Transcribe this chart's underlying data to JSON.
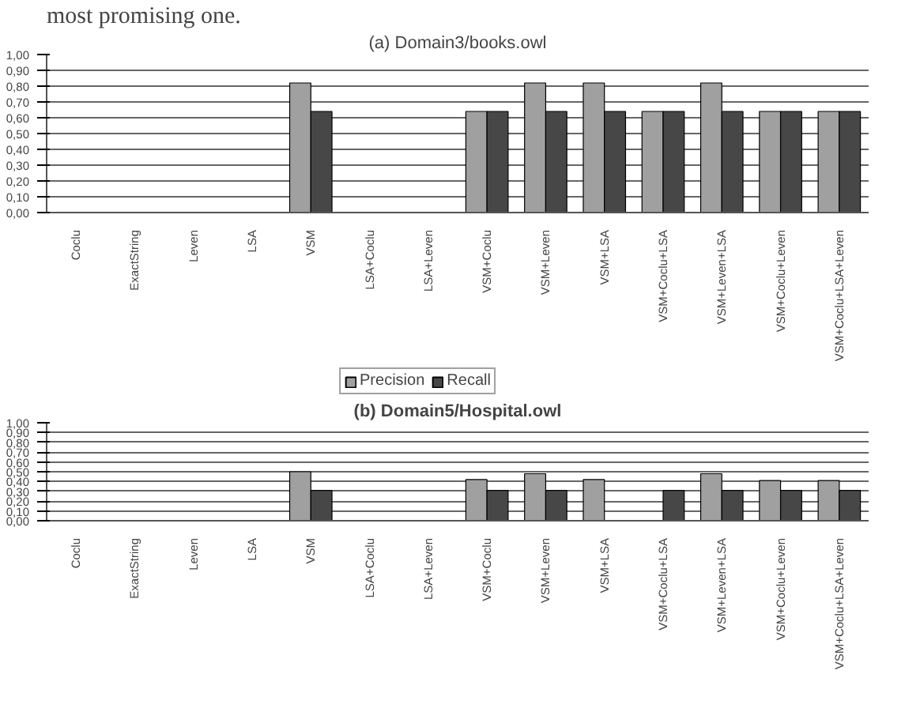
{
  "chart_data": [
    {
      "type": "bar",
      "title": "(a) Domain3/books.owl",
      "annotations": [
        "most promising one."
      ],
      "categories": [
        "Coclu",
        "ExactString",
        "Leven",
        "LSA",
        "VSM",
        "LSA+Coclu",
        "LSA+Leven",
        "VSM+Coclu",
        "VSM+Leven",
        "VSM+LSA",
        "VSM+Coclu+LSA",
        "VSM+Leven+LSA",
        "VSM+Coclu+Leven",
        "VSM+Coclu+LSA+Leven"
      ],
      "series": [
        {
          "name": "Precision",
          "color": "#a0a0a0",
          "values": [
            null,
            null,
            null,
            null,
            0.82,
            null,
            null,
            0.64,
            0.82,
            0.82,
            0.64,
            0.82,
            0.64,
            0.64
          ]
        },
        {
          "name": "Recall",
          "color": "#474747",
          "values": [
            null,
            null,
            null,
            null,
            0.64,
            null,
            null,
            0.64,
            0.64,
            0.64,
            0.64,
            0.64,
            0.64,
            0.64
          ]
        }
      ],
      "ylim": [
        0,
        1
      ],
      "yticks": [
        {
          "value": 0,
          "label": "0,00"
        },
        {
          "value": 0.1,
          "label": "0,10"
        },
        {
          "value": 0.2,
          "label": "0,20"
        },
        {
          "value": 0.3,
          "label": "0,30"
        },
        {
          "value": 0.4,
          "label": "0,40"
        },
        {
          "value": 0.5,
          "label": "0,50"
        },
        {
          "value": 0.6,
          "label": "0,60"
        },
        {
          "value": 0.7,
          "label": "0,70"
        },
        {
          "value": 0.8,
          "label": "0,80"
        },
        {
          "value": 0.9,
          "label": "0,90"
        },
        {
          "value": 1,
          "label": "1,00"
        }
      ],
      "grid": "y",
      "legend": "bottom"
    },
    {
      "type": "bar",
      "title": "(b) Domain5/Hospital.owl",
      "categories": [
        "Coclu",
        "ExactString",
        "Leven",
        "LSA",
        "VSM",
        "LSA+Coclu",
        "LSA+Leven",
        "VSM+Coclu",
        "VSM+Leven",
        "VSM+LSA",
        "VSM+Coclu+LSA",
        "VSM+Leven+LSA",
        "VSM+Coclu+Leven",
        "VSM+Coclu+LSA+Leven"
      ],
      "series": [
        {
          "color": "#a0a0a0",
          "values": [
            null,
            null,
            null,
            null,
            0.5,
            null,
            null,
            0.42,
            0.48,
            0.42,
            null,
            0.48,
            0.41,
            0.41
          ]
        },
        {
          "color": "#474747",
          "values": [
            null,
            null,
            null,
            null,
            0.31,
            null,
            null,
            0.31,
            0.31,
            null,
            0.31,
            0.31,
            0.31,
            0.31
          ]
        }
      ],
      "ylim": [
        0,
        1
      ],
      "yticks": [
        {
          "value": 0,
          "label": "0,00"
        },
        {
          "value": 0.1,
          "label": "0,10"
        },
        {
          "value": 0.2,
          "label": "0,20"
        },
        {
          "value": 0.3,
          "label": "0,30"
        },
        {
          "value": 0.4,
          "label": "0,40"
        },
        {
          "value": 0.5,
          "label": "0,50"
        },
        {
          "value": 0.6,
          "label": "0,60"
        },
        {
          "value": 0.7,
          "label": "0,70"
        },
        {
          "value": 0.8,
          "label": "0,80"
        },
        {
          "value": 0.9,
          "label": "0,90"
        },
        {
          "value": 1,
          "label": "1,00"
        }
      ],
      "grid": "y"
    }
  ]
}
